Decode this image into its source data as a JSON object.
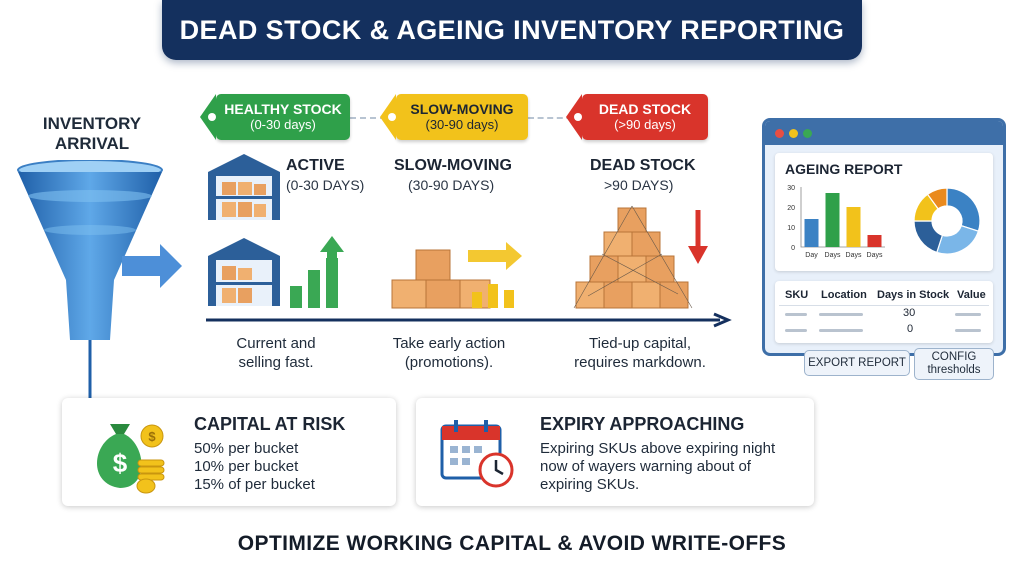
{
  "title": "DEAD STOCK & AGEING INVENTORY REPORTING",
  "funnel": {
    "label_line1": "INVENTORY",
    "label_line2": "ARRIVAL"
  },
  "tags": [
    {
      "label": "HEALTHY STOCK",
      "range": "(0-30 days)",
      "color": "#2fa04a"
    },
    {
      "label": "SLOW-MOVING",
      "range": "(30-90 days)",
      "color": "#f2c21b"
    },
    {
      "label": "DEAD STOCK",
      "range": "(>90 days)",
      "color": "#d9342b"
    }
  ],
  "stages": [
    {
      "heading": "ACTIVE",
      "sub": "(0-30 DAYS)",
      "caption_line1": "Current and",
      "caption_line2": "selling fast."
    },
    {
      "heading": "SLOW-MOVING",
      "sub": "(30-90 DAYS)",
      "caption_line1": "Take early action",
      "caption_line2": "(promotions)."
    },
    {
      "heading": "DEAD STOCK",
      "sub": ">90 DAYS)",
      "caption_line1": "Tied-up capital,",
      "caption_line2": "requires markdown."
    }
  ],
  "report": {
    "title": "AGEING REPORT",
    "chart_data": {
      "type": "bar",
      "categories": [
        "Day",
        "Days",
        "Days",
        "Days"
      ],
      "values": [
        14,
        27,
        20,
        6
      ],
      "colors": [
        "#3b82c4",
        "#2fa04a",
        "#f2c21b",
        "#d9342b"
      ],
      "yticks": [
        "30",
        "20",
        "10",
        "0"
      ],
      "ylim": [
        0,
        30
      ]
    },
    "pie": {
      "type": "pie",
      "values": [
        30,
        25,
        20,
        15,
        10
      ],
      "colors": [
        "#3b82c4",
        "#7ab6e8",
        "#2c5f99",
        "#f2c21b",
        "#ea8a1d"
      ]
    },
    "table": {
      "headers": [
        "SKU",
        "Location",
        "Days in Stock",
        "Value"
      ],
      "rows": [
        [
          "",
          "",
          "30",
          ""
        ],
        [
          "",
          "",
          "0",
          ""
        ]
      ]
    },
    "buttons": {
      "export": "EXPORT REPORT",
      "config_line1": "CONFIG",
      "config_line2": "thresholds"
    }
  },
  "capital_card": {
    "title": "CAPITAL AT RISK",
    "lines": [
      "50% per bucket",
      "10% per bucket",
      "15% of per bucket"
    ]
  },
  "expiry_card": {
    "title": "EXPIRY APPROACHING",
    "lines": [
      "Expiring SKUs above expiring night",
      "now of wayers  warning about of",
      "expiring SKUs."
    ]
  },
  "footer": "OPTIMIZE WORKING CAPITAL & AVOID WRITE-OFFS"
}
